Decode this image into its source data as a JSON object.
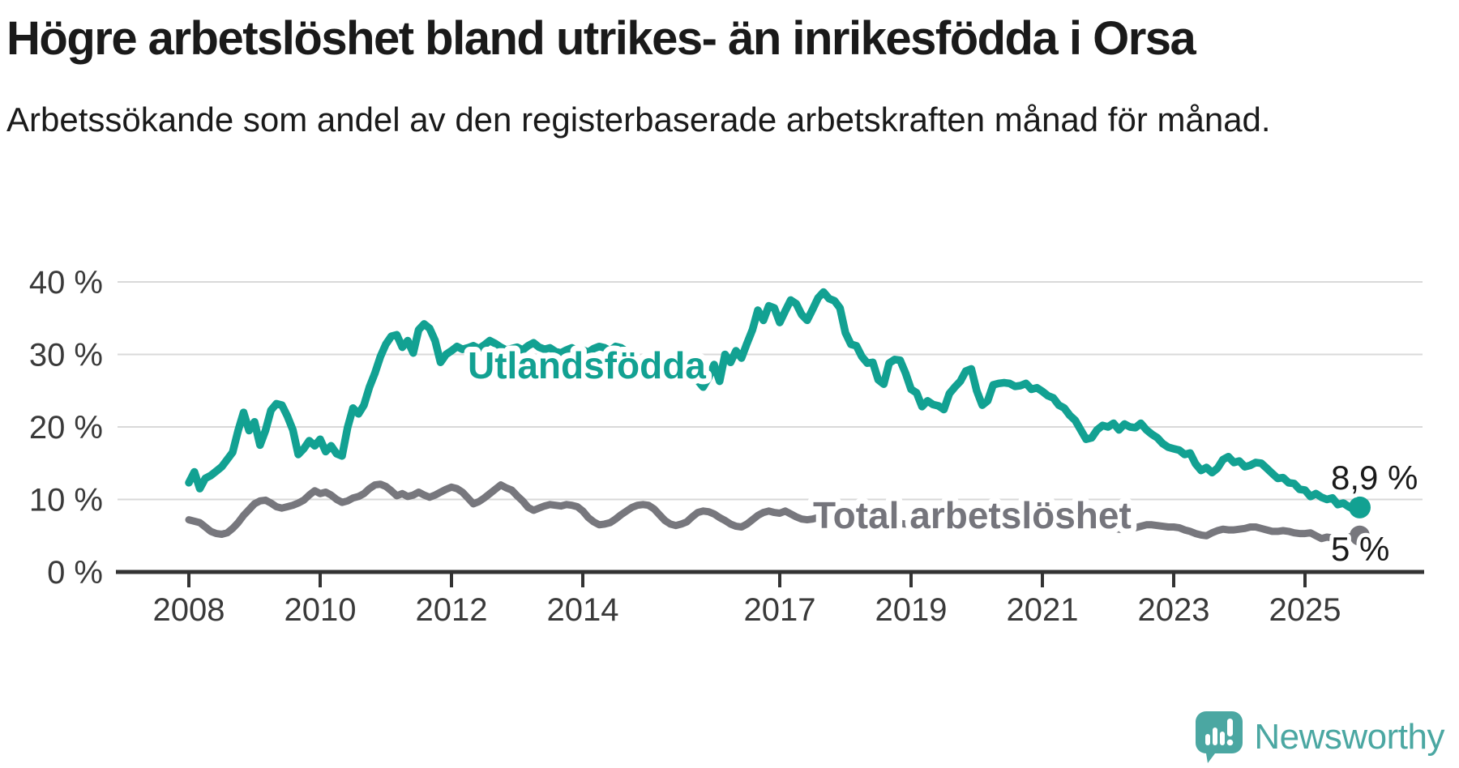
{
  "header": {
    "title": "Högre arbetslöshet bland utrikes- än inrikesfödda i Orsa",
    "subtitle": "Arbetssökande som andel av den registerbaserade arbetskraften månad för månad."
  },
  "footer": {
    "brand": "Newsworthy"
  },
  "colors": {
    "foreign_born_line": "#12a192",
    "total_line": "#77777d",
    "axis_text": "#3a3a3a",
    "gridline": "#d9d9d9",
    "axis_line": "#333333",
    "value_label_text": "#1a1a1a",
    "total_label_text": "#75757c",
    "logo_teal": "#4ba7a2",
    "background": "#ffffff"
  },
  "chart_data": {
    "type": "line",
    "title": "Högre arbetslöshet bland utrikes- än inrikesfödda i Orsa",
    "subtitle": "Arbetssökande som andel av den registerbaserade arbetskraften månad för månad.",
    "unit": "%",
    "grid": true,
    "x_start": "2008-01",
    "x_end": "2025-11",
    "points_per_year": 12,
    "x_tick_years": [
      2008,
      2010,
      2012,
      2014,
      2017,
      2019,
      2021,
      2023,
      2025
    ],
    "x_tick_labels": [
      "2008",
      "2010",
      "2012",
      "2014",
      "2017",
      "2019",
      "2021",
      "2023",
      "2025"
    ],
    "y_ticks": [
      0,
      10,
      20,
      30,
      40
    ],
    "y_tick_labels": [
      "0 %",
      "10 %",
      "20 %",
      "30 %",
      "40 %"
    ],
    "ylim": [
      0,
      42
    ],
    "legend_position": "inline-labels",
    "series": [
      {
        "name": "Utlandsfödda",
        "color": "#12a192",
        "end_label": "8,9 %",
        "end_value": 8.9,
        "values": [
          12.3,
          13.8,
          11.5,
          12.9,
          13.3,
          13.9,
          14.5,
          15.5,
          16.5,
          19.5,
          22.0,
          19.5,
          20.7,
          17.5,
          19.5,
          22.3,
          23.2,
          23.0,
          21.5,
          19.6,
          16.2,
          17.0,
          18.1,
          17.4,
          18.3,
          16.6,
          17.4,
          16.3,
          16.0,
          19.9,
          22.6,
          21.8,
          23.0,
          25.5,
          27.4,
          29.7,
          31.4,
          32.5,
          32.7,
          31.0,
          31.9,
          30.2,
          33.4,
          34.2,
          33.6,
          31.9,
          28.9,
          30.0,
          30.5,
          31.1,
          30.7,
          30.9,
          31.2,
          30.8,
          31.3,
          31.9,
          31.5,
          31.0,
          30.6,
          30.8,
          31.0,
          30.6,
          31.2,
          31.6,
          31.0,
          30.7,
          30.9,
          30.4,
          30.2,
          30.6,
          30.9,
          30.5,
          30.6,
          30.3,
          30.8,
          31.1,
          30.9,
          30.5,
          31.1,
          30.9,
          30.4,
          29.8,
          29.2,
          28.6,
          28.2,
          28.6,
          28.0,
          27.6,
          27.9,
          27.3,
          27.0,
          27.4,
          27.1,
          26.4,
          25.5,
          26.8,
          28.6,
          26.3,
          30.0,
          28.9,
          30.5,
          29.5,
          31.5,
          33.4,
          36.1,
          34.7,
          36.7,
          36.4,
          34.4,
          36.0,
          37.5,
          37.0,
          35.5,
          34.7,
          36.2,
          37.8,
          38.6,
          37.7,
          37.4,
          36.4,
          33.0,
          31.4,
          31.2,
          29.7,
          28.8,
          28.9,
          26.5,
          25.9,
          28.8,
          29.3,
          29.2,
          27.4,
          25.2,
          24.7,
          22.8,
          23.6,
          23.1,
          22.9,
          22.4,
          24.6,
          25.5,
          26.3,
          27.7,
          28.0,
          25.0,
          23.0,
          23.6,
          25.8,
          26.0,
          26.1,
          26.0,
          25.6,
          25.7,
          26.0,
          25.2,
          25.4,
          24.9,
          24.3,
          24.0,
          23.0,
          22.6,
          21.6,
          20.9,
          19.6,
          18.3,
          18.5,
          19.6,
          20.2,
          20.0,
          20.5,
          19.6,
          20.4,
          20.0,
          19.9,
          20.5,
          19.6,
          19.0,
          18.5,
          17.7,
          17.2,
          17.0,
          16.8,
          16.2,
          16.4,
          14.9,
          14.0,
          14.4,
          13.7,
          14.3,
          15.5,
          15.9,
          15.1,
          15.3,
          14.5,
          14.7,
          15.1,
          15.0,
          14.3,
          13.6,
          12.9,
          13.0,
          12.3,
          12.2,
          11.4,
          11.3,
          10.4,
          10.8,
          10.3,
          10.0,
          10.2,
          9.3,
          9.5,
          9.0,
          8.6,
          8.9
        ]
      },
      {
        "name": "Total arbetslöshet",
        "color": "#77777d",
        "end_label": "5 %",
        "end_value": 5.0,
        "values": [
          7.2,
          7.0,
          6.8,
          6.2,
          5.6,
          5.3,
          5.2,
          5.4,
          6.0,
          6.8,
          7.8,
          8.6,
          9.4,
          9.8,
          9.9,
          9.5,
          9.0,
          8.8,
          9.0,
          9.2,
          9.5,
          9.9,
          10.6,
          11.2,
          10.8,
          11.0,
          10.6,
          10.0,
          9.6,
          9.8,
          10.2,
          10.4,
          10.8,
          11.5,
          12.0,
          12.1,
          11.8,
          11.2,
          10.5,
          10.8,
          10.4,
          10.6,
          11.0,
          10.6,
          10.3,
          10.6,
          11.0,
          11.4,
          11.7,
          11.5,
          11.0,
          10.2,
          9.4,
          9.7,
          10.2,
          10.8,
          11.4,
          12.0,
          11.6,
          11.3,
          10.5,
          9.8,
          8.9,
          8.5,
          8.8,
          9.1,
          9.3,
          9.2,
          9.1,
          9.3,
          9.2,
          9.0,
          8.4,
          7.5,
          6.9,
          6.5,
          6.6,
          6.8,
          7.3,
          7.9,
          8.4,
          8.9,
          9.2,
          9.3,
          9.2,
          8.7,
          7.9,
          7.1,
          6.6,
          6.4,
          6.6,
          6.9,
          7.6,
          8.2,
          8.4,
          8.3,
          8.0,
          7.5,
          7.1,
          6.6,
          6.3,
          6.2,
          6.6,
          7.2,
          7.8,
          8.2,
          8.4,
          8.2,
          8.1,
          8.4,
          8.0,
          7.6,
          7.3,
          7.2,
          7.3,
          7.5,
          7.7,
          7.6,
          7.4,
          7.3,
          7.1,
          6.9,
          6.7,
          6.5,
          6.4,
          6.5,
          6.7,
          6.8,
          6.9,
          6.8,
          6.7,
          6.6,
          6.5,
          6.3,
          6.2,
          6.3,
          6.4,
          6.5,
          6.7,
          6.8,
          6.9,
          7.0,
          7.0,
          7.0,
          7.0,
          7.1,
          7.3,
          7.6,
          7.7,
          7.7,
          7.6,
          7.5,
          7.4,
          7.3,
          7.2,
          7.1,
          7.0,
          6.9,
          6.8,
          6.7,
          6.6,
          6.5,
          6.4,
          6.3,
          6.2,
          6.1,
          6.1,
          6.0,
          6.0,
          6.0,
          5.9,
          5.9,
          5.9,
          6.1,
          6.3,
          6.5,
          6.5,
          6.4,
          6.3,
          6.2,
          6.2,
          6.1,
          5.8,
          5.6,
          5.3,
          5.1,
          5.0,
          5.4,
          5.7,
          5.9,
          5.8,
          5.8,
          5.9,
          6.0,
          6.2,
          6.2,
          6.0,
          5.8,
          5.6,
          5.6,
          5.7,
          5.6,
          5.4,
          5.3,
          5.3,
          5.4,
          5.0,
          4.6,
          4.8,
          4.7,
          4.3,
          4.5,
          4.8,
          5.0,
          5.0
        ]
      }
    ]
  }
}
